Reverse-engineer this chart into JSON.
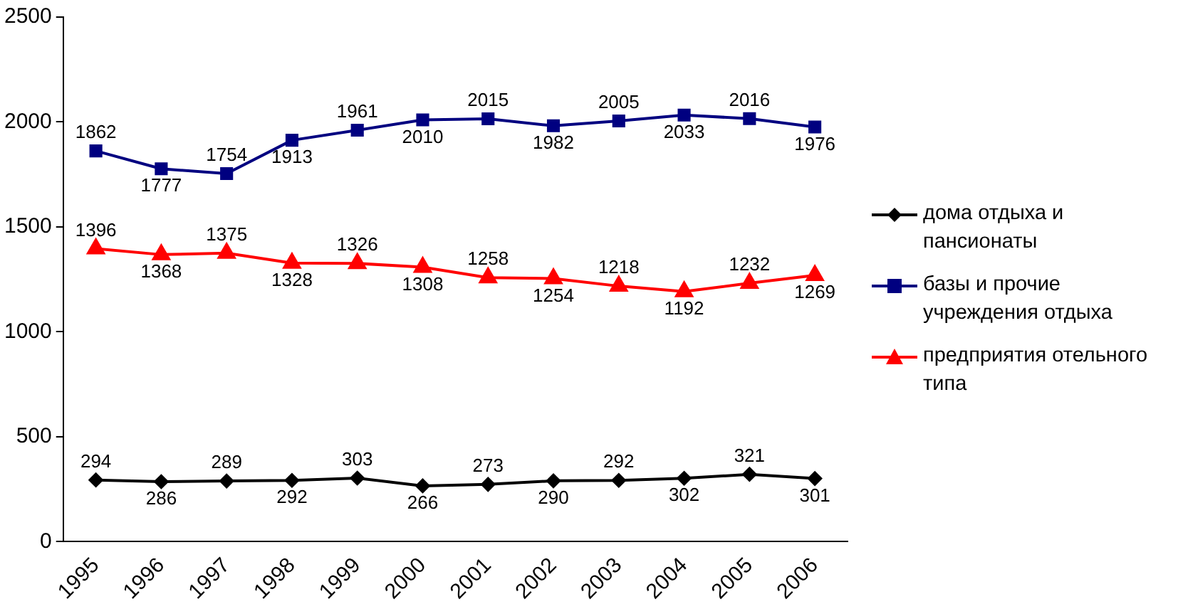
{
  "chart_data": {
    "type": "line",
    "categories": [
      "1995",
      "1996",
      "1997",
      "1998",
      "1999",
      "2000",
      "2001",
      "2002",
      "2003",
      "2004",
      "2005",
      "2006"
    ],
    "series": [
      {
        "name": "дома отдыха и пансионаты",
        "color": "#000000",
        "marker": "diamond",
        "values": [
          294,
          286,
          289,
          292,
          303,
          266,
          273,
          290,
          292,
          302,
          321,
          301
        ]
      },
      {
        "name": "базы и прочие учреждения отдыха",
        "color": "#000080",
        "marker": "square",
        "values": [
          1862,
          1777,
          1754,
          1913,
          1961,
          2010,
          2015,
          1982,
          2005,
          2033,
          2016,
          1976
        ]
      },
      {
        "name": "предприятия отельного типа",
        "color": "#ff0000",
        "marker": "triangle",
        "values": [
          1396,
          1368,
          1375,
          1328,
          1326,
          1308,
          1258,
          1254,
          1218,
          1192,
          1232,
          1269
        ]
      }
    ],
    "ylim": [
      0,
      2500
    ],
    "yticks": [
      0,
      500,
      1000,
      1500,
      2000,
      2500
    ],
    "grid": false,
    "legend": "right",
    "data_labels": true
  }
}
